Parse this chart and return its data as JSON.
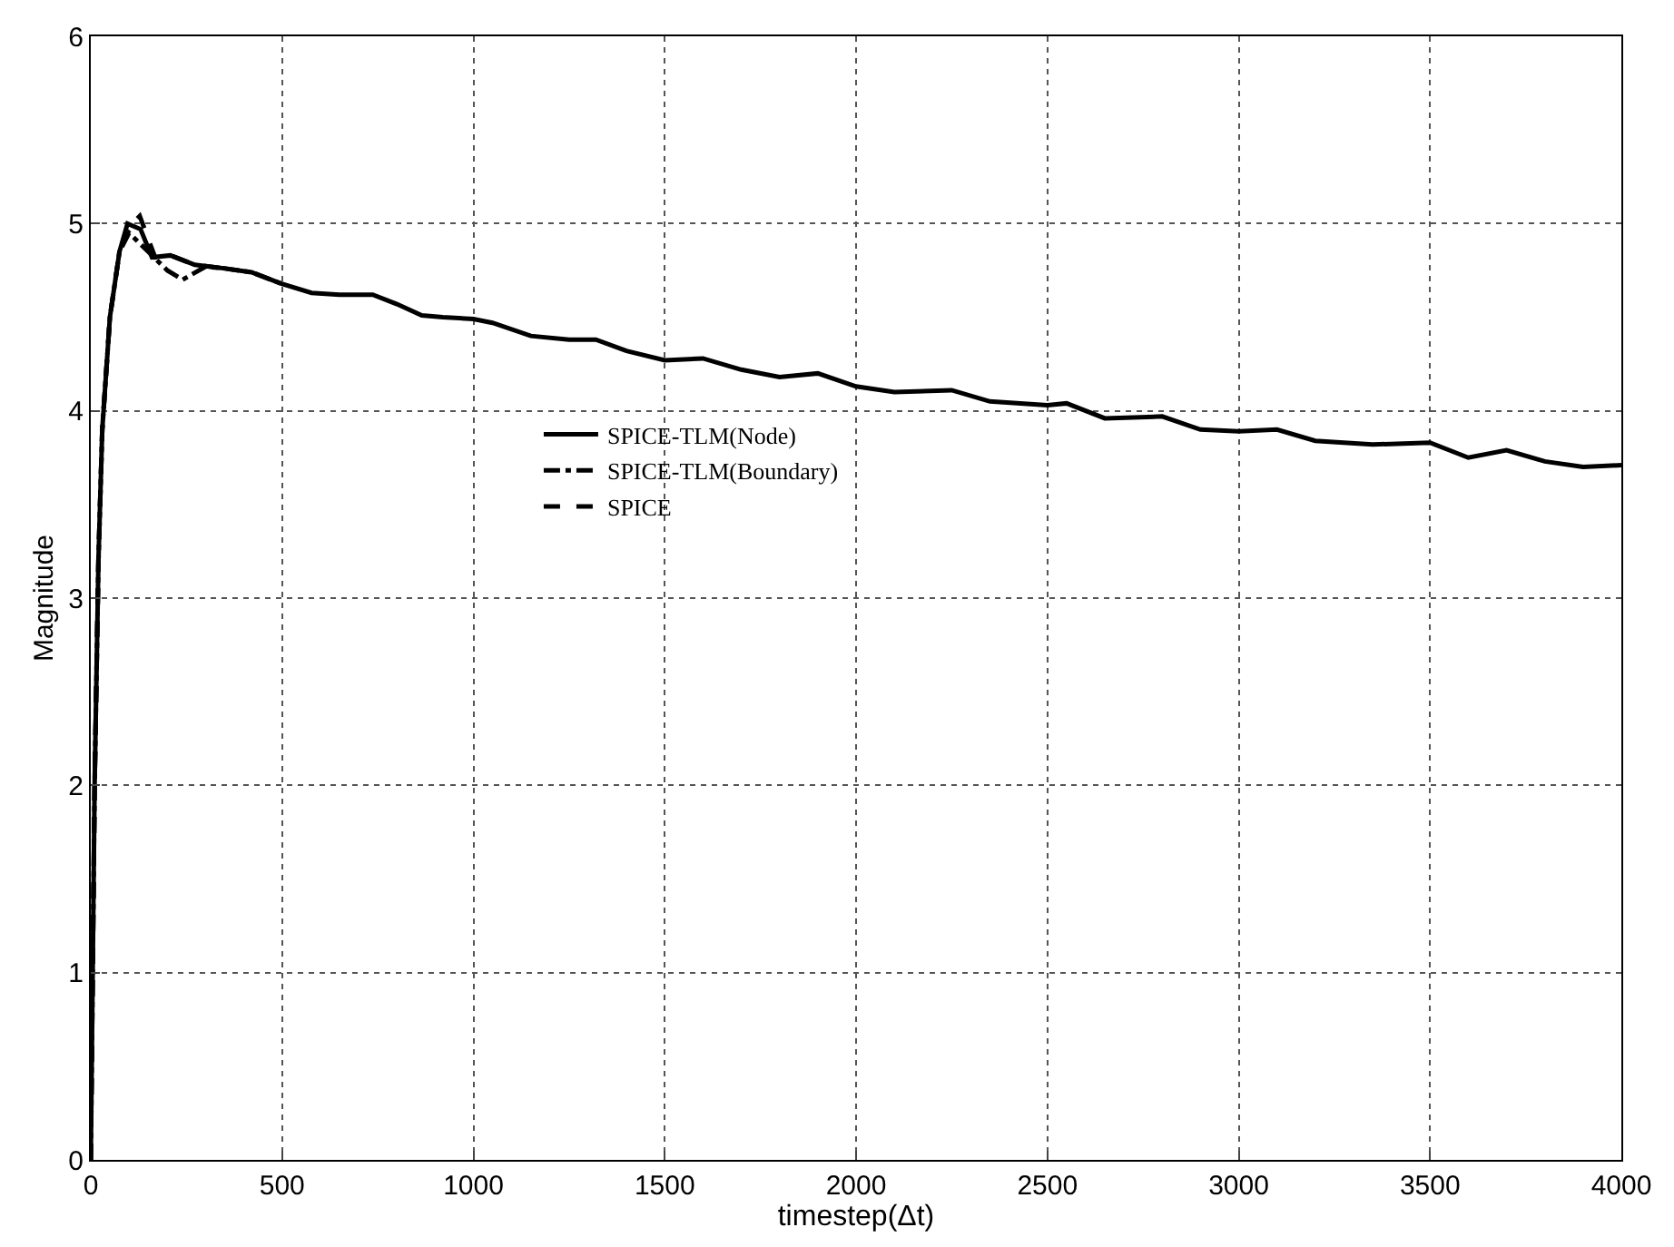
{
  "chart_data": {
    "type": "line",
    "xlabel": "timestep(Δt)",
    "ylabel": "Magnitude",
    "xlim": [
      0,
      4000
    ],
    "xticks": [
      0,
      500,
      1000,
      1500,
      2000,
      2500,
      3000,
      3500,
      4000
    ],
    "ylim": [
      0,
      6
    ],
    "yticks": [
      0,
      1,
      2,
      3,
      4,
      5,
      6
    ],
    "grid": true,
    "legend": "center",
    "marker": "none",
    "series": [
      {
        "name": "SPICE-TLM(Node)",
        "color": "#000000",
        "line_style": "solid",
        "x": [
          0,
          10,
          20,
          30,
          50,
          75,
          96,
          130,
          160,
          208,
          272,
          352,
          420,
          497,
          577,
          650,
          737,
          800,
          865,
          920,
          1000,
          1050,
          1150,
          1250,
          1320,
          1400,
          1500,
          1600,
          1700,
          1800,
          1900,
          2000,
          2100,
          2250,
          2350,
          2500,
          2550,
          2650,
          2800,
          2900,
          3000,
          3100,
          3200,
          3350,
          3500,
          3600,
          3700,
          3800,
          3900,
          4000
        ],
        "values": [
          0,
          2.0,
          3.2,
          3.9,
          4.5,
          4.85,
          5.0,
          4.97,
          4.82,
          4.83,
          4.78,
          4.76,
          4.74,
          4.68,
          4.63,
          4.62,
          4.62,
          4.57,
          4.51,
          4.5,
          4.49,
          4.47,
          4.4,
          4.38,
          4.38,
          4.32,
          4.27,
          4.28,
          4.22,
          4.18,
          4.2,
          4.13,
          4.1,
          4.11,
          4.05,
          4.03,
          4.04,
          3.96,
          3.97,
          3.9,
          3.89,
          3.9,
          3.84,
          3.82,
          3.83,
          3.75,
          3.79,
          3.73,
          3.7,
          3.71
        ]
      },
      {
        "name": "SPICE-TLM(Boundary)",
        "color": "#000000",
        "line_style": "dashdot",
        "x": [
          0,
          10,
          20,
          30,
          50,
          75,
          100,
          150,
          200,
          240,
          300,
          352,
          420,
          497
        ],
        "values": [
          0,
          2.0,
          3.2,
          3.9,
          4.5,
          4.85,
          4.95,
          4.85,
          4.75,
          4.7,
          4.77,
          4.76,
          4.74,
          4.68
        ]
      },
      {
        "name": "SPICE",
        "color": "#000000",
        "line_style": "dashed",
        "x": [
          0,
          10,
          20,
          30,
          50,
          75,
          100,
          128,
          168,
          208,
          272,
          352
        ],
        "values": [
          0,
          2.0,
          3.2,
          3.9,
          4.5,
          4.85,
          4.98,
          5.04,
          4.82,
          4.83,
          4.78,
          4.76
        ]
      }
    ]
  }
}
